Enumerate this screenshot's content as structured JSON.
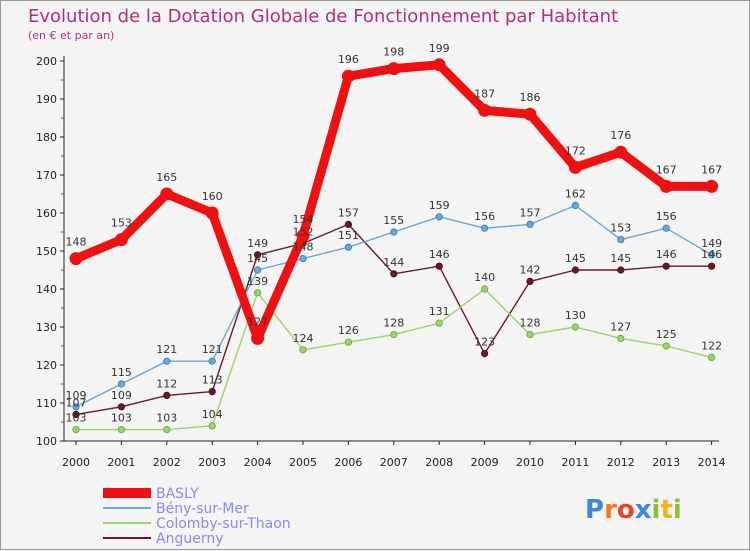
{
  "chart_data": {
    "type": "line",
    "title": "Evolution de la Dotation Globale de Fonctionnement par Habitant",
    "subtitle": "(en € et par an)",
    "x": [
      "2000",
      "2001",
      "2002",
      "2003",
      "2004",
      "2005",
      "2006",
      "2007",
      "2008",
      "2009",
      "2010",
      "2011",
      "2012",
      "2013",
      "2014"
    ],
    "ylim": [
      100,
      200
    ],
    "yticks": [
      100,
      110,
      120,
      130,
      140,
      150,
      160,
      170,
      180,
      190,
      200
    ],
    "grid": false,
    "legend_position": "bottom-left",
    "series": [
      {
        "name": "Anguerny",
        "color": "#6b1a24",
        "values": [
          107,
          109,
          112,
          113,
          149,
          152,
          157,
          144,
          146,
          123,
          142,
          145,
          145,
          146,
          146
        ]
      },
      {
        "name": "Colomby-sur-Thaon",
        "color": "#9ad46a",
        "values": [
          103,
          103,
          103,
          104,
          139,
          124,
          126,
          128,
          131,
          140,
          128,
          130,
          127,
          125,
          122
        ]
      },
      {
        "name": "Bény-sur-Mer",
        "color": "#6aa8d8",
        "values": [
          109,
          115,
          121,
          121,
          145,
          148,
          151,
          155,
          159,
          156,
          157,
          162,
          153,
          156,
          149
        ]
      },
      {
        "name": "BASLY",
        "color": "#ee1111",
        "values": [
          148,
          153,
          165,
          160,
          127,
          154,
          196,
          198,
          199,
          187,
          186,
          172,
          176,
          167,
          167
        ]
      }
    ]
  },
  "legend": {
    "items": [
      {
        "label": "BASLY",
        "color": "#ee1111",
        "text_color": "#8a8aee"
      },
      {
        "label": "Bény-sur-Mer",
        "color": "#6aa8d8",
        "text_color": "#8a8aee"
      },
      {
        "label": "Colomby-sur-Thaon",
        "color": "#9ad46a",
        "text_color": "#8a8aee"
      },
      {
        "label": "Anguerny",
        "color": "#6b1a24",
        "text_color": "#8a8aee"
      }
    ]
  },
  "logo": {
    "text": "Proxiti",
    "letters": [
      {
        "ch": "P",
        "color": "#3b8ad6"
      },
      {
        "ch": "r",
        "color": "#f07a1a"
      },
      {
        "ch": "o",
        "color": "#e24a2a"
      },
      {
        "ch": "x",
        "color": "#3b8ad6"
      },
      {
        "ch": "i",
        "color": "#8ac23a"
      },
      {
        "ch": "t",
        "color": "#f0b41a"
      },
      {
        "ch": "i",
        "color": "#8ac23a"
      }
    ]
  }
}
